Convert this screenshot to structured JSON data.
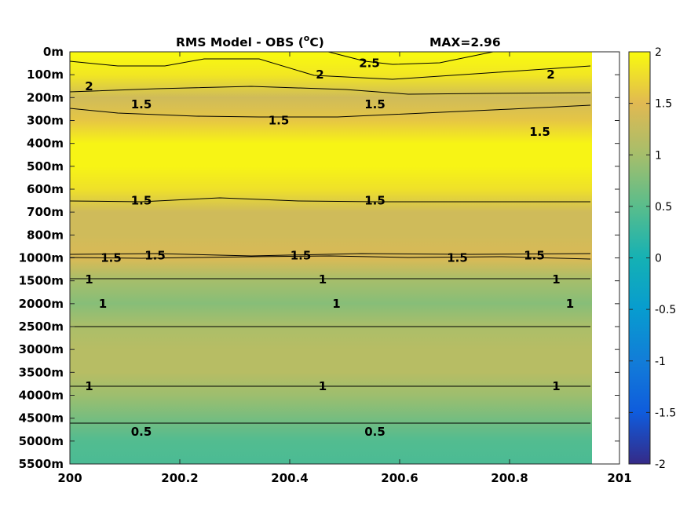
{
  "chart_data": {
    "type": "heatmap",
    "title": "RMS Model - OBS (",
    "title_unit_sup": "o",
    "title_unit_tail": "C)",
    "max_label": "MAX=2.96",
    "x_ticks": [
      "200",
      "200.2",
      "200.4",
      "200.6",
      "200.8",
      "201"
    ],
    "x_tick_values": [
      200,
      200.2,
      200.4,
      200.6,
      200.8,
      201
    ],
    "xlim": [
      200,
      201
    ],
    "data_x_end": 200.95,
    "y_ticks": [
      "0m",
      "100m",
      "200m",
      "300m",
      "400m",
      "500m",
      "600m",
      "700m",
      "800m",
      "1000m",
      "1500m",
      "2000m",
      "2500m",
      "3000m",
      "3500m",
      "4000m",
      "4500m",
      "5000m",
      "5500m"
    ],
    "colorbar": {
      "ticks": [
        "2",
        "1.5",
        "1",
        "0.5",
        "0",
        "-0.5",
        "-1",
        "-1.5",
        "-2"
      ],
      "tick_values": [
        2,
        1.5,
        1,
        0.5,
        0,
        -0.5,
        -1,
        -1.5,
        -2
      ],
      "range": [
        -2,
        2
      ],
      "colormap": "parula"
    },
    "depth_profile": [
      {
        "level": "0m",
        "value": 2.2
      },
      {
        "level": "100m",
        "value": 1.85
      },
      {
        "level": "200m",
        "value": 1.35
      },
      {
        "level": "300m",
        "value": 1.6
      },
      {
        "level": "400m",
        "value": 1.95
      },
      {
        "level": "500m",
        "value": 1.95
      },
      {
        "level": "600m",
        "value": 1.8
      },
      {
        "level": "700m",
        "value": 1.35
      },
      {
        "level": "800m",
        "value": 1.35
      },
      {
        "level": "1000m",
        "value": 1.45
      },
      {
        "level": "1500m",
        "value": 1.0
      },
      {
        "level": "2000m",
        "value": 0.8
      },
      {
        "level": "2500m",
        "value": 1.05
      },
      {
        "level": "3000m",
        "value": 1.15
      },
      {
        "level": "3500m",
        "value": 1.15
      },
      {
        "level": "4000m",
        "value": 0.95
      },
      {
        "level": "4500m",
        "value": 0.7
      },
      {
        "level": "5000m",
        "value": 0.45
      },
      {
        "level": "5500m",
        "value": 0.4
      }
    ],
    "contour_labels": [
      {
        "text": "2",
        "x": 200.035,
        "level": "100m",
        "frac": 0.5
      },
      {
        "text": "2.5",
        "x": 200.545,
        "level": "0m",
        "frac": 0.5
      },
      {
        "text": "2",
        "x": 200.455,
        "level": "100m",
        "frac": 0.0
      },
      {
        "text": "2",
        "x": 200.875,
        "level": "100m",
        "frac": 0.0
      },
      {
        "text": "1.5",
        "x": 200.13,
        "level": "200m",
        "frac": 0.3
      },
      {
        "text": "1.5",
        "x": 200.555,
        "level": "200m",
        "frac": 0.3
      },
      {
        "text": "1.5",
        "x": 200.855,
        "level": "300m",
        "frac": 0.5
      },
      {
        "text": "1.5",
        "x": 200.38,
        "level": "300m",
        "frac": 0.0
      },
      {
        "text": "1.5",
        "x": 200.13,
        "level": "600m",
        "frac": 0.5
      },
      {
        "text": "1.5",
        "x": 200.555,
        "level": "600m",
        "frac": 0.5
      },
      {
        "text": "1.5",
        "x": 200.075,
        "level": "1000m",
        "frac": 0.0
      },
      {
        "text": "1.5",
        "x": 200.155,
        "level": "800m",
        "frac": 0.9
      },
      {
        "text": "1.5",
        "x": 200.42,
        "level": "800m",
        "frac": 0.9
      },
      {
        "text": "1.5",
        "x": 200.705,
        "level": "1000m",
        "frac": 0.0
      },
      {
        "text": "1.5",
        "x": 200.845,
        "level": "800m",
        "frac": 0.9
      },
      {
        "text": "1",
        "x": 200.035,
        "level": "1000m",
        "frac": 0.95
      },
      {
        "text": "1",
        "x": 200.46,
        "level": "1000m",
        "frac": 0.95
      },
      {
        "text": "1",
        "x": 200.885,
        "level": "1000m",
        "frac": 0.95
      },
      {
        "text": "1",
        "x": 200.06,
        "level": "2000m",
        "frac": 0.0
      },
      {
        "text": "1",
        "x": 200.485,
        "level": "2000m",
        "frac": 0.0
      },
      {
        "text": "1",
        "x": 200.91,
        "level": "2000m",
        "frac": 0.0
      },
      {
        "text": "1",
        "x": 200.035,
        "level": "3500m",
        "frac": 0.6
      },
      {
        "text": "1",
        "x": 200.46,
        "level": "3500m",
        "frac": 0.6
      },
      {
        "text": "1",
        "x": 200.885,
        "level": "3500m",
        "frac": 0.6
      },
      {
        "text": "0.5",
        "x": 200.13,
        "level": "4000m",
        "frac": 1.6
      },
      {
        "text": "0.5",
        "x": 200.555,
        "level": "4000m",
        "frac": 1.6
      }
    ]
  }
}
